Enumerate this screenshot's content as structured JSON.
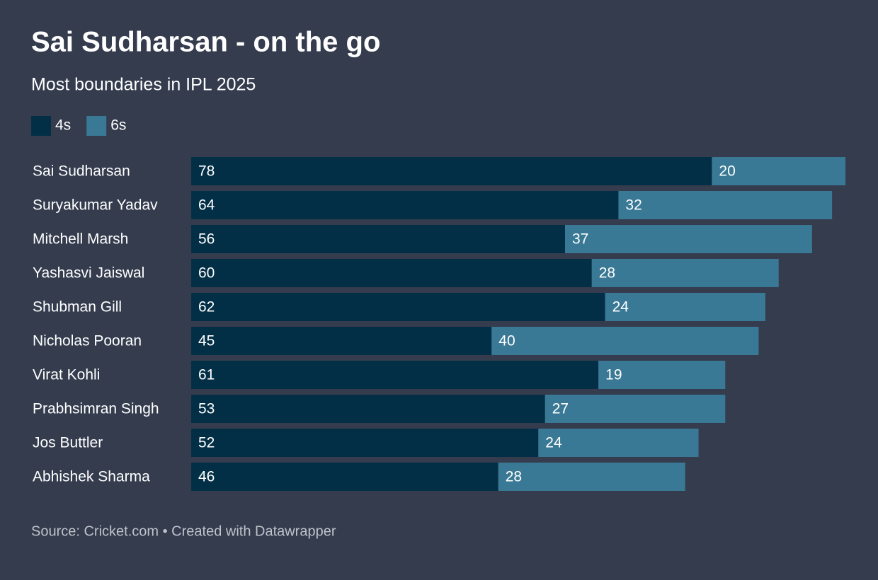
{
  "chart_data": {
    "type": "stacked-bar",
    "title": "Sai Sudharsan - on the go",
    "subtitle": "Most boundaries in IPL 2025",
    "source": "Source: Cricket.com • Created with Datawrapper",
    "categories": [
      "Sai Sudharsan",
      "Suryakumar Yadav",
      "Mitchell Marsh",
      "Yashasvi Jaiswal",
      "Shubman Gill",
      "Nicholas Pooran",
      "Virat Kohli",
      "Prabhsimran Singh",
      "Jos Buttler",
      "Abhishek Sharma"
    ],
    "series": [
      {
        "name": "4s",
        "color": "#032f46",
        "values": [
          78,
          64,
          56,
          60,
          62,
          45,
          61,
          53,
          52,
          46
        ]
      },
      {
        "name": "6s",
        "color": "#3a7995",
        "values": [
          20,
          32,
          37,
          28,
          24,
          40,
          19,
          27,
          24,
          28
        ]
      }
    ]
  }
}
